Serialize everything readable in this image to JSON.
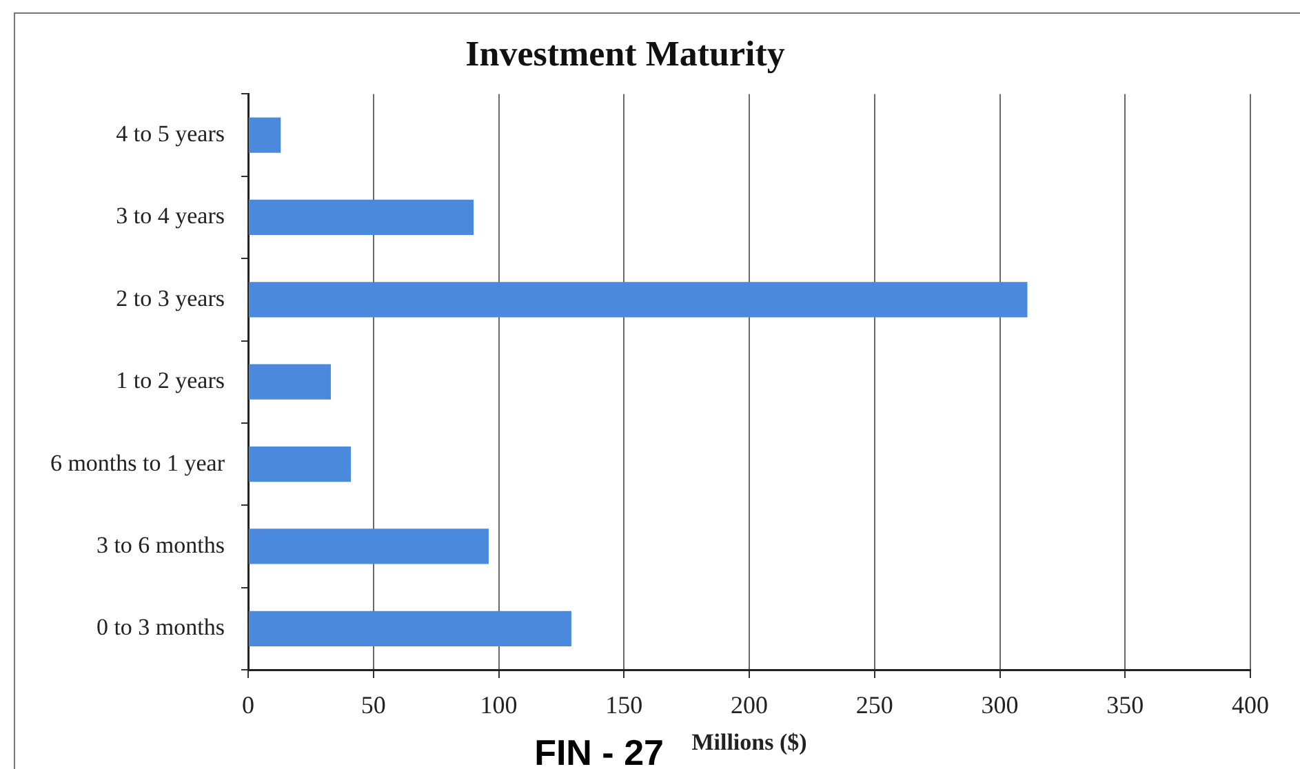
{
  "chart_data": {
    "type": "bar",
    "orientation": "horizontal",
    "title": "Investment Maturity",
    "xlabel": "Millions ($)",
    "annotations": [
      "FIN - 27"
    ],
    "categories": [
      "4 to 5 years",
      "3 to 4 years",
      "2 to 3 years",
      "1 to 2 years",
      "6 months to 1 year",
      "3 to 6 months",
      "0 to 3 months"
    ],
    "values": [
      13,
      90,
      311,
      33,
      41,
      96,
      129
    ],
    "color": "#4a89dc",
    "xlim": [
      0,
      400
    ],
    "xticks": [
      0,
      50,
      100,
      150,
      200,
      250,
      300,
      350,
      400
    ],
    "grid": "x"
  }
}
